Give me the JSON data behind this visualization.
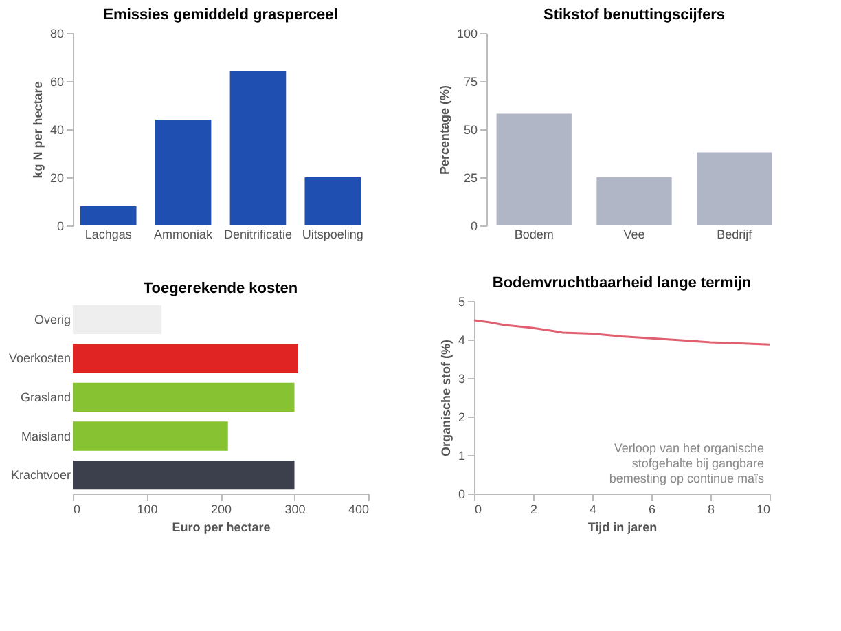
{
  "chart_data": [
    {
      "type": "bar",
      "title": "Emissies gemiddeld grasperceel",
      "ylabel": "kg N per hectare",
      "categories": [
        "Lachgas",
        "Ammoniak",
        "Denitrificatie",
        "Uitspoeling"
      ],
      "values": [
        8,
        44,
        64,
        20
      ],
      "color": "#1f4fb0",
      "ylim": [
        0,
        80
      ],
      "yticks": [
        0,
        20,
        40,
        60,
        80
      ],
      "grid": false
    },
    {
      "type": "bar",
      "title": "Stikstof benuttingscijfers",
      "ylabel": "Percentage (%)",
      "categories": [
        "Bodem",
        "Vee",
        "Bedrijf"
      ],
      "values": [
        58,
        25,
        38
      ],
      "color": "#b0b6c6",
      "ylim": [
        0,
        100
      ],
      "yticks": [
        0,
        25,
        50,
        75,
        100
      ],
      "grid": false
    },
    {
      "type": "bar",
      "orientation": "horizontal",
      "title": "Toegerekende kosten",
      "xlabel": "Euro per hectare",
      "categories": [
        "Overig",
        "Voerkosten",
        "Grasland",
        "Maisland",
        "Krachtvoer"
      ],
      "values": [
        120,
        305,
        300,
        210,
        300
      ],
      "colors": [
        "#eeeeee",
        "#e02424",
        "#86c232",
        "#86c232",
        "#3c3f4c"
      ],
      "xlim": [
        0,
        400
      ],
      "xticks": [
        0,
        100,
        200,
        300,
        400
      ],
      "grid": false
    },
    {
      "type": "line",
      "title": "Bodemvruchtbaarheid lange termijn",
      "xlabel": "Tijd in jaren",
      "ylabel": "Organische stof (%)",
      "x": [
        0,
        0.5,
        1,
        2,
        2.7,
        3,
        4,
        5,
        6,
        7,
        8,
        9,
        10
      ],
      "values": [
        4.5,
        4.45,
        4.38,
        4.3,
        4.22,
        4.18,
        4.15,
        4.08,
        4.03,
        3.98,
        3.93,
        3.9,
        3.87
      ],
      "color": "#e06070",
      "xlim": [
        0,
        10
      ],
      "xticks": [
        0,
        2,
        4,
        6,
        8,
        10
      ],
      "ylim": [
        0,
        5
      ],
      "yticks": [
        0,
        1,
        2,
        3,
        4,
        5
      ],
      "grid": false,
      "marker": "none",
      "line_style": "solid",
      "annotations": [
        "Verloop van het organische stofgehalte bij gangbare bemesting op continue maïs"
      ]
    }
  ]
}
